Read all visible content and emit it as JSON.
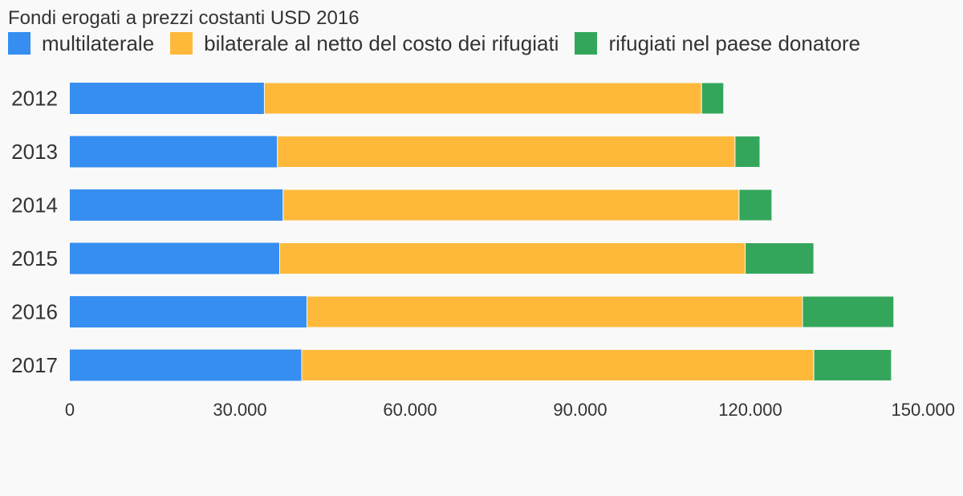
{
  "chart_data": {
    "type": "bar",
    "orientation": "horizontal",
    "stacked": true,
    "title": "Fondi erogati a prezzi costanti USD 2016",
    "categories": [
      "2012",
      "2013",
      "2014",
      "2015",
      "2016",
      "2017"
    ],
    "series": [
      {
        "name": "multilaterale",
        "color": "#358ef0",
        "values": [
          34300,
          36600,
          37600,
          37000,
          41800,
          40900
        ]
      },
      {
        "name": "bilaterale al netto del costo dei rifugiati",
        "color": "#ffb93a",
        "values": [
          77100,
          80700,
          80400,
          82100,
          87400,
          90300
        ]
      },
      {
        "name": "rifugiati nel paese donatore",
        "color": "#34a65b",
        "values": [
          3900,
          4400,
          5800,
          12100,
          16100,
          13700
        ]
      }
    ],
    "xlim": [
      0,
      150000
    ],
    "xticks": [
      0,
      30000,
      60000,
      90000,
      120000,
      150000
    ],
    "xtick_labels": [
      "0",
      "30.000",
      "60.000",
      "90.000",
      "120.000",
      "150.000"
    ],
    "legend_position": "top-left",
    "grid": false
  }
}
